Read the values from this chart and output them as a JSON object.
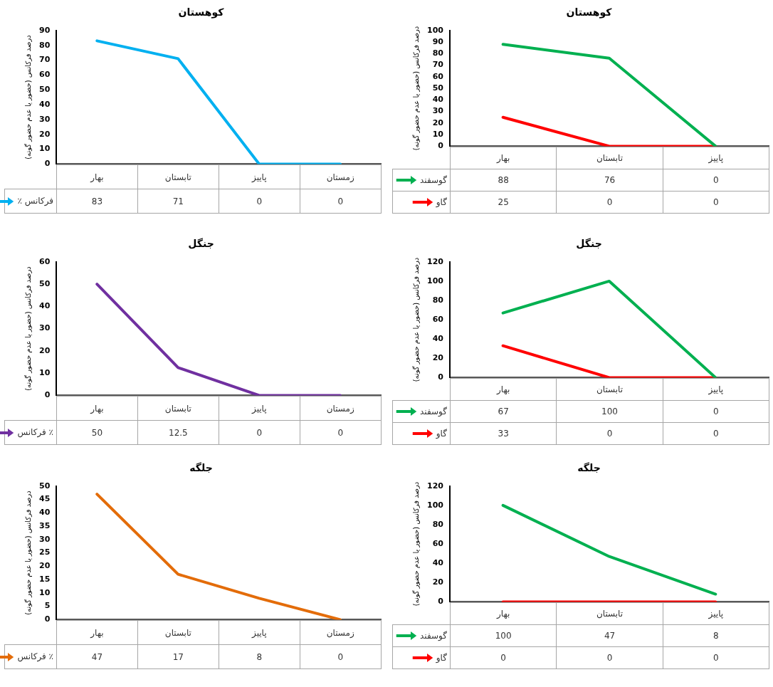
{
  "chart_data": [
    {
      "type": "line",
      "title": "کوهستان",
      "ylabel": "درصد فرکانس (حضور یا عدم حضور گونه)",
      "categories": [
        "بهار",
        "تابستان",
        "پاییز",
        "زمستان"
      ],
      "series": [
        {
          "name": "فرکانس ٪",
          "color": "#00b0f0",
          "values": [
            83,
            71,
            0,
            0
          ]
        }
      ],
      "ylim": [
        0,
        90
      ],
      "yticks": [
        0,
        10,
        20,
        30,
        40,
        50,
        60,
        70,
        80,
        90
      ],
      "grid": false,
      "legend": "bottom",
      "data_labels": true,
      "marker": "none",
      "line_style": "solid"
    },
    {
      "type": "line",
      "title": "کوهستان",
      "ylabel": "درصد فرکانس (حضور یا عدم حضور گونه)",
      "categories": [
        "بهار",
        "تابستان",
        "پاییز"
      ],
      "series": [
        {
          "name": "گوسفند",
          "color": "#00b050",
          "values": [
            88,
            76,
            0
          ]
        },
        {
          "name": "گاو",
          "color": "#ff0000",
          "values": [
            25,
            0,
            0
          ]
        }
      ],
      "ylim": [
        0,
        100
      ],
      "yticks": [
        0,
        10,
        20,
        30,
        40,
        50,
        60,
        70,
        80,
        90,
        100
      ],
      "grid": false,
      "legend": "bottom",
      "data_labels": true,
      "marker": "none",
      "line_style": "solid"
    },
    {
      "type": "line",
      "title": "جنگل",
      "ylabel": "درصد فرکانس (حضور یا عدم حضور گونه)",
      "categories": [
        "بهار",
        "تابستان",
        "پاییز",
        "زمستان"
      ],
      "series": [
        {
          "name": "٪ فرکانس",
          "color": "#7030a0",
          "values": [
            50,
            12.5,
            0,
            0
          ]
        }
      ],
      "ylim": [
        0,
        60
      ],
      "yticks": [
        0,
        10,
        20,
        30,
        40,
        50,
        60
      ],
      "grid": false,
      "legend": "bottom",
      "data_labels": true,
      "marker": "none",
      "line_style": "solid"
    },
    {
      "type": "line",
      "title": "جنگل",
      "ylabel": "درصد فرکانس (حضور یا عدم حضور گونه)",
      "categories": [
        "بهار",
        "تابستان",
        "پاییز"
      ],
      "series": [
        {
          "name": "گوسفند",
          "color": "#00b050",
          "values": [
            67,
            100,
            0
          ]
        },
        {
          "name": "گاو",
          "color": "#ff0000",
          "values": [
            33,
            0,
            0
          ]
        }
      ],
      "ylim": [
        0,
        120
      ],
      "yticks": [
        0,
        20,
        40,
        60,
        80,
        100,
        120
      ],
      "grid": false,
      "legend": "bottom",
      "data_labels": true,
      "marker": "none",
      "line_style": "solid"
    },
    {
      "type": "line",
      "title": "جلگه",
      "ylabel": "درصد فرکانس (حضور یا عدم حضور گونه)",
      "categories": [
        "بهار",
        "تابستان",
        "پاییز",
        "زمستان"
      ],
      "series": [
        {
          "name": "٪ فرکانس",
          "color": "#e36c09",
          "values": [
            47,
            17,
            8,
            0
          ]
        }
      ],
      "ylim": [
        0,
        50
      ],
      "yticks": [
        0,
        5,
        10,
        15,
        20,
        25,
        30,
        35,
        40,
        45,
        50
      ],
      "grid": false,
      "legend": "bottom",
      "data_labels": true,
      "marker": "none",
      "line_style": "solid"
    },
    {
      "type": "line",
      "title": "جلگه",
      "ylabel": "درصد فرکانس (حضور یا عدم حضور گونه)",
      "categories": [
        "بهار",
        "تابستان",
        "پاییز"
      ],
      "series": [
        {
          "name": "گوسفند",
          "color": "#00b050",
          "values": [
            100,
            47,
            8
          ]
        },
        {
          "name": "گاو",
          "color": "#ff0000",
          "values": [
            0,
            0,
            0
          ]
        }
      ],
      "ylim": [
        0,
        120
      ],
      "yticks": [
        0,
        20,
        40,
        60,
        80,
        100,
        120
      ],
      "grid": false,
      "legend": "bottom",
      "data_labels": true,
      "marker": "none",
      "line_style": "solid"
    }
  ]
}
